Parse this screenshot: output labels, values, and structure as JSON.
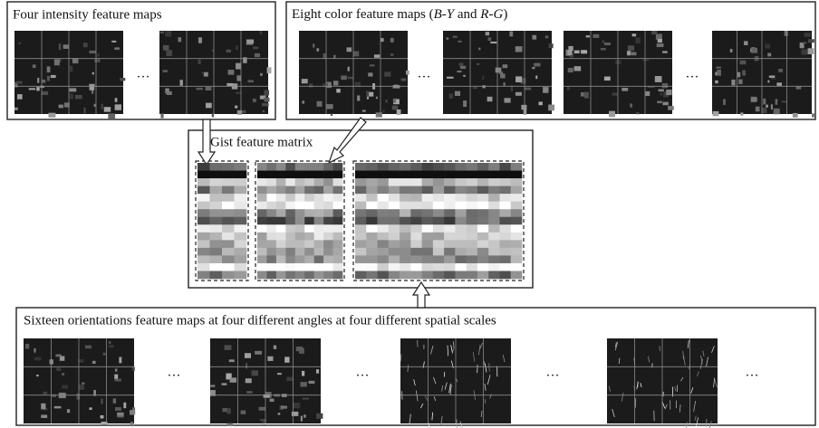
{
  "boxes": {
    "intensity": {
      "title": "Four intensity feature maps",
      "ellipses": [
        "…"
      ]
    },
    "color": {
      "title_parts": [
        "Eight color feature maps (",
        "B",
        "-",
        "Y",
        " and ",
        "R",
        "-",
        "G",
        ")"
      ],
      "ellipses": [
        "…",
        "…"
      ]
    },
    "gist": {
      "title": "Gist feature matrix"
    },
    "orientation": {
      "title": "Sixteen orientations feature maps at four different angles at four different spatial scales",
      "ellipses": [
        "…",
        "…",
        "…",
        "…"
      ]
    }
  }
}
